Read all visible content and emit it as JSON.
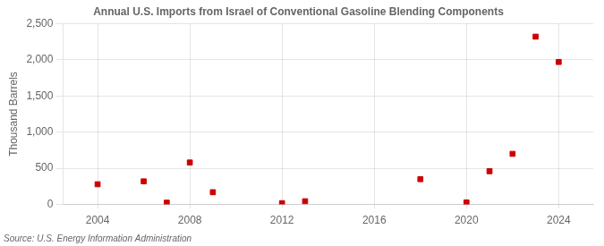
{
  "chart_data": {
    "type": "scatter",
    "title": "Annual U.S. Imports from Israel of Conventional Gasoline Blending Components",
    "y_label": "Thousand Barrels",
    "annotations": [
      "Source: U.S. Energy Information Administration"
    ],
    "x": [
      2004,
      2006,
      2007,
      2008,
      2009,
      2012,
      2013,
      2018,
      2020,
      2021,
      2022,
      2023,
      2024
    ],
    "values": [
      280,
      320,
      25,
      580,
      170,
      18,
      45,
      350,
      28,
      460,
      700,
      2320,
      1970
    ],
    "color": "#cc0000",
    "marker": "square",
    "xlim": [
      2002.5,
      2025.5
    ],
    "ylim": [
      0,
      2500
    ],
    "xticks": [
      2004,
      2008,
      2012,
      2016,
      2020,
      2024
    ],
    "yticks": [
      0,
      500,
      {
        "value": 1000,
        "label": "1,000"
      },
      {
        "value": 1500,
        "label": "1,500"
      },
      {
        "value": 2000,
        "label": "2,000"
      },
      {
        "value": 2500,
        "label": "2,500"
      }
    ],
    "grid": true
  }
}
